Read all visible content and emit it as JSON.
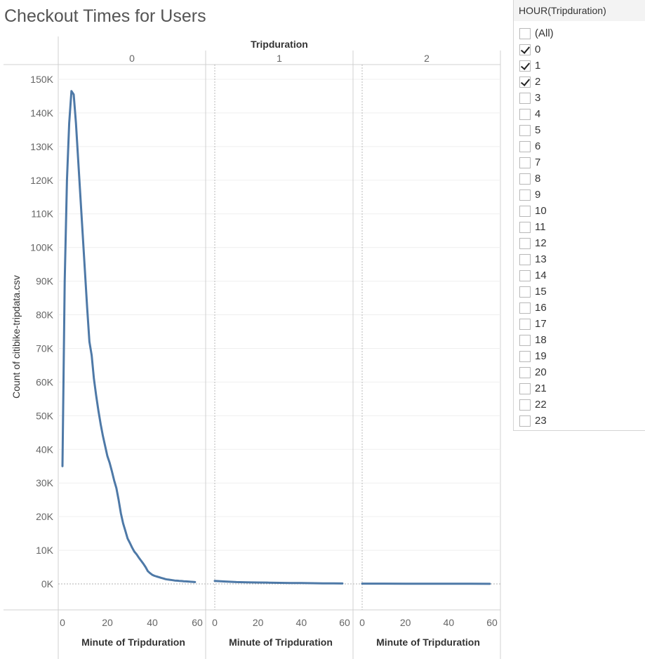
{
  "title": "Checkout Times for Users",
  "filter": {
    "title": "HOUR(Tripduration)",
    "items": [
      {
        "label": "(All)",
        "checked": false
      },
      {
        "label": "0",
        "checked": true
      },
      {
        "label": "1",
        "checked": true
      },
      {
        "label": "2",
        "checked": true
      },
      {
        "label": "3",
        "checked": false
      },
      {
        "label": "4",
        "checked": false
      },
      {
        "label": "5",
        "checked": false
      },
      {
        "label": "6",
        "checked": false
      },
      {
        "label": "7",
        "checked": false
      },
      {
        "label": "8",
        "checked": false
      },
      {
        "label": "9",
        "checked": false
      },
      {
        "label": "10",
        "checked": false
      },
      {
        "label": "11",
        "checked": false
      },
      {
        "label": "12",
        "checked": false
      },
      {
        "label": "13",
        "checked": false
      },
      {
        "label": "14",
        "checked": false
      },
      {
        "label": "15",
        "checked": false
      },
      {
        "label": "16",
        "checked": false
      },
      {
        "label": "17",
        "checked": false
      },
      {
        "label": "18",
        "checked": false
      },
      {
        "label": "19",
        "checked": false
      },
      {
        "label": "20",
        "checked": false
      },
      {
        "label": "21",
        "checked": false
      },
      {
        "label": "22",
        "checked": false
      },
      {
        "label": "23",
        "checked": false
      }
    ]
  },
  "chart_data": {
    "type": "line",
    "title": "Checkout Times for Users",
    "column_header": "Tripduration",
    "ylabel": "Count of citibike-tripdata.csv",
    "xlabel": "Minute of Tripduration",
    "ylim": [
      0,
      150000
    ],
    "xlim": [
      0,
      60
    ],
    "y_ticks": [
      "0K",
      "10K",
      "20K",
      "30K",
      "40K",
      "50K",
      "60K",
      "70K",
      "80K",
      "90K",
      "100K",
      "110K",
      "120K",
      "130K",
      "140K",
      "150K"
    ],
    "x_ticks": [
      "0",
      "20",
      "40",
      "60"
    ],
    "grid": true,
    "line_color": "#4e79a7",
    "panels": [
      {
        "label": "0",
        "x": [
          0,
          1,
          2,
          3,
          4,
          5,
          6,
          7,
          8,
          9,
          10,
          11,
          12,
          13,
          14,
          15,
          16,
          17,
          18,
          19,
          20,
          21,
          22,
          23,
          24,
          25,
          26,
          27,
          28,
          29,
          30,
          31,
          32,
          33,
          34,
          35,
          36,
          37,
          38,
          39,
          40,
          41,
          42,
          43,
          44,
          45,
          46,
          47,
          48,
          49,
          50,
          51,
          52,
          53,
          54,
          55,
          56,
          57,
          58,
          59
        ],
        "y": [
          35000,
          90000,
          120000,
          137000,
          146500,
          145500,
          137000,
          126000,
          115000,
          104000,
          93000,
          82000,
          72000,
          68000,
          61000,
          56000,
          51500,
          47500,
          44000,
          41000,
          38000,
          36000,
          33500,
          30800,
          28500,
          25000,
          21000,
          18000,
          15800,
          13500,
          12200,
          10800,
          9600,
          8800,
          7800,
          6900,
          6000,
          5000,
          3800,
          3200,
          2700,
          2400,
          2200,
          2000,
          1800,
          1600,
          1400,
          1300,
          1200,
          1100,
          1000,
          950,
          900,
          850,
          800,
          750,
          700,
          650,
          600,
          550
        ]
      },
      {
        "label": "1",
        "x": [
          0,
          5,
          10,
          15,
          20,
          25,
          30,
          35,
          40,
          45,
          50,
          55,
          59
        ],
        "y": [
          900,
          700,
          550,
          480,
          420,
          370,
          320,
          280,
          240,
          200,
          170,
          140,
          120
        ]
      },
      {
        "label": "2",
        "x": [
          0,
          10,
          20,
          30,
          40,
          50,
          59
        ],
        "y": [
          90,
          80,
          70,
          60,
          50,
          40,
          30
        ]
      }
    ]
  }
}
